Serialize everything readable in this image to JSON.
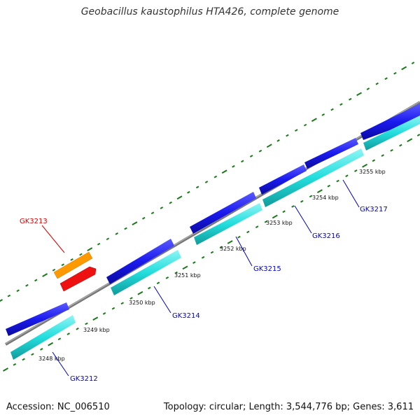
{
  "header": {
    "title": "Geobacillus kaustophilus HTA426, complete genome"
  },
  "footer": {
    "accession": "Accession: NC_006510",
    "summary": "Topology: circular; Length: 3,544,776 bp; Genes: 3,611"
  },
  "scale": {
    "labels": [
      {
        "text": "3248 kbp"
      },
      {
        "text": "3249 kbp"
      },
      {
        "text": "3250 kbp"
      },
      {
        "text": "3251 kbp"
      },
      {
        "text": "3252 kbp"
      },
      {
        "text": "3253 kbp"
      },
      {
        "text": "3254 kbp"
      },
      {
        "text": "3255 kbp"
      }
    ]
  },
  "gene_labels": [
    {
      "text": "GK3212",
      "color": "#0000cc"
    },
    {
      "text": "GK3213",
      "color": "#dd0000"
    },
    {
      "text": "GK3214",
      "color": "#0000cc"
    },
    {
      "text": "GK3215",
      "color": "#0000cc"
    },
    {
      "text": "GK3216",
      "color": "#0000cc"
    },
    {
      "text": "GK3217",
      "color": "#0000cc"
    }
  ],
  "colors": {
    "backbone": "#888888",
    "forward_gene": "#1a1aee",
    "reverse_gene": "#22dddd",
    "highlight_outer": "#ff9900",
    "highlight_inner": "#ee1111",
    "tick": "#1a7a1a"
  }
}
